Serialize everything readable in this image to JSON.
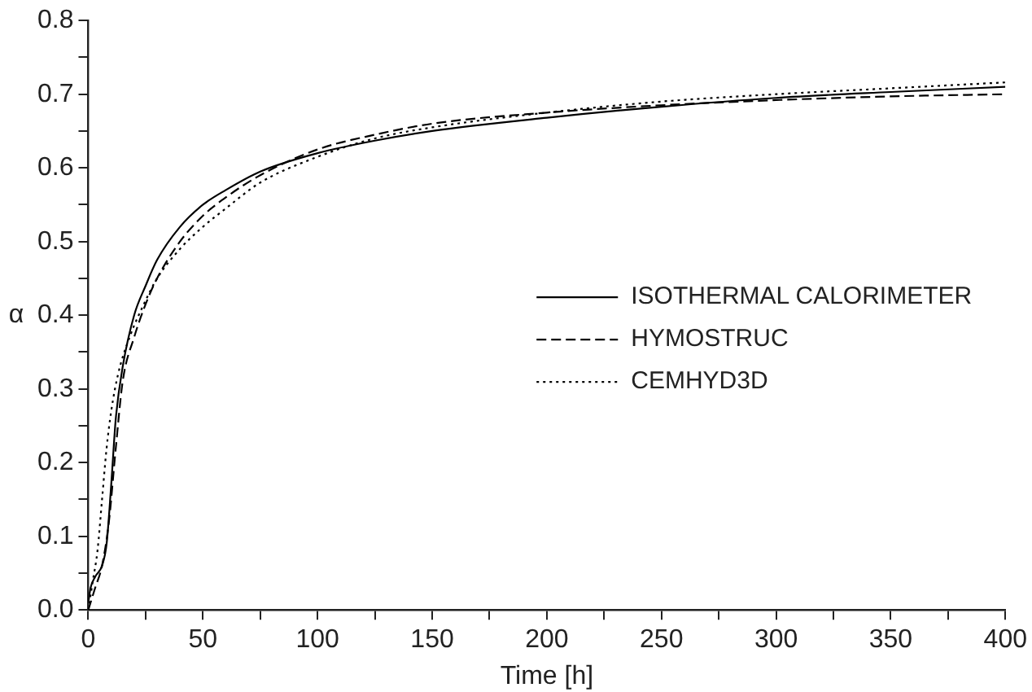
{
  "chart_data": {
    "type": "line",
    "xlabel": "Time [h]",
    "ylabel": "α",
    "xlim": [
      0,
      400
    ],
    "ylim": [
      0,
      0.8
    ],
    "xticks": [
      0,
      {
        "value": 25,
        "label": null
      },
      50,
      {
        "value": 75,
        "label": null
      },
      100,
      {
        "value": 125,
        "label": null
      },
      150,
      {
        "value": 175,
        "label": null
      },
      200,
      {
        "value": 225,
        "label": null
      },
      250,
      {
        "value": 275,
        "label": null
      },
      300,
      {
        "value": 325,
        "label": null
      },
      350,
      {
        "value": 375,
        "label": null
      },
      400
    ],
    "yticks": [
      {
        "value": 0,
        "label": "0.0"
      },
      {
        "value": 0.05,
        "label": null
      },
      0.1,
      {
        "value": 0.15,
        "label": null
      },
      0.2,
      {
        "value": 0.25,
        "label": null
      },
      0.3,
      {
        "value": 0.35,
        "label": null
      },
      0.4,
      {
        "value": 0.45,
        "label": null
      },
      0.5,
      {
        "value": 0.55,
        "label": null
      },
      0.6,
      {
        "value": 0.65,
        "label": null
      },
      0.7,
      {
        "value": 0.75,
        "label": null
      },
      0.8
    ],
    "grid": false,
    "legend": "right",
    "marker": "none",
    "series": [
      {
        "name": "ISOTHERMAL CALORIMETER",
        "color": "#000000",
        "line_style": "solid",
        "x": [
          0,
          1,
          3,
          6,
          8,
          10,
          12,
          15,
          20,
          25,
          30,
          40,
          50,
          60,
          75,
          100,
          125,
          150,
          200,
          250,
          300,
          350,
          400
        ],
        "values": [
          0.01,
          0.03,
          0.045,
          0.06,
          0.09,
          0.17,
          0.26,
          0.33,
          0.4,
          0.44,
          0.475,
          0.52,
          0.55,
          0.57,
          0.595,
          0.62,
          0.637,
          0.65,
          0.668,
          0.683,
          0.695,
          0.703,
          0.71
        ]
      },
      {
        "name": "HYMOSTRUC",
        "color": "#000000",
        "line_style": "dashed",
        "x": [
          0,
          3,
          6,
          9,
          12,
          15,
          20,
          25,
          30,
          40,
          50,
          60,
          75,
          100,
          125,
          150,
          200,
          250,
          300,
          350,
          400
        ],
        "values": [
          0,
          0.03,
          0.06,
          0.12,
          0.22,
          0.31,
          0.37,
          0.415,
          0.45,
          0.5,
          0.535,
          0.56,
          0.59,
          0.625,
          0.645,
          0.66,
          0.675,
          0.685,
          0.692,
          0.697,
          0.7
        ]
      },
      {
        "name": "CEMHYD3D",
        "color": "#000000",
        "line_style": "dotted",
        "x": [
          0,
          2,
          4,
          6,
          8,
          10,
          13,
          18,
          25,
          30,
          40,
          50,
          60,
          75,
          100,
          125,
          150,
          200,
          250,
          300,
          350,
          400
        ],
        "values": [
          0,
          0.04,
          0.08,
          0.15,
          0.22,
          0.27,
          0.32,
          0.37,
          0.42,
          0.45,
          0.49,
          0.52,
          0.545,
          0.58,
          0.615,
          0.64,
          0.655,
          0.675,
          0.69,
          0.7,
          0.708,
          0.716
        ]
      }
    ]
  }
}
